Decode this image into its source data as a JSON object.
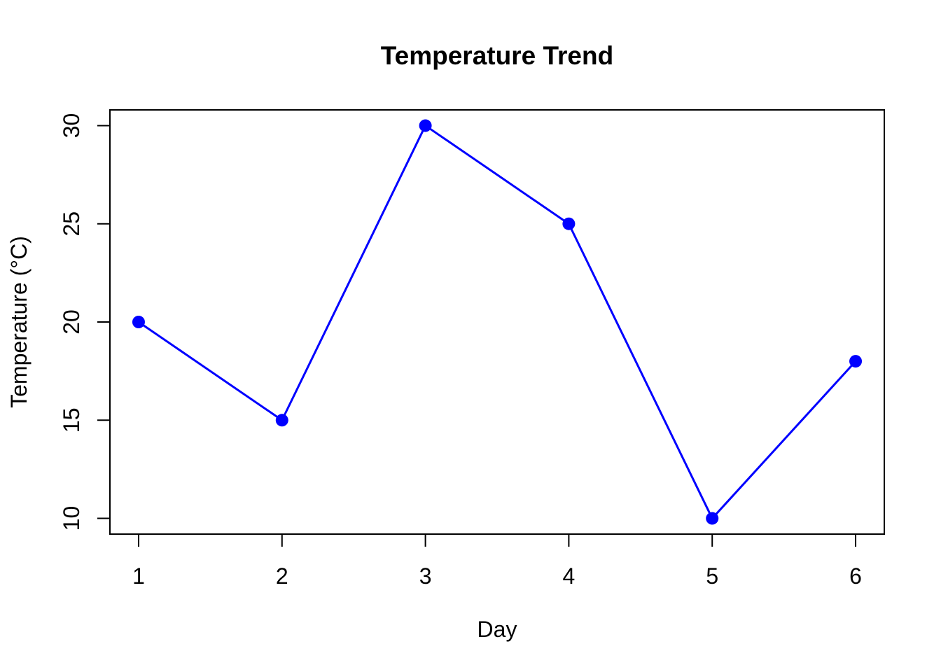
{
  "figure": {
    "background": "#FFFFFF"
  },
  "chart_data": {
    "type": "line",
    "title": "Temperature Trend",
    "xlabel": "Day",
    "ylabel": "Temperature (°C)",
    "x": [
      1,
      2,
      3,
      4,
      5,
      6
    ],
    "series": [
      {
        "name": "temperature",
        "values": [
          20,
          15,
          30,
          25,
          10,
          18
        ]
      }
    ],
    "xticks": [
      1,
      2,
      3,
      4,
      5,
      6
    ],
    "yticks": [
      10,
      15,
      20,
      25,
      30
    ],
    "xlim": [
      0.8,
      6.2
    ],
    "ylim": [
      9.2,
      30.8
    ],
    "grid": false,
    "legend_position": "none",
    "line_color": "#0000FF",
    "point_color": "#0000FF",
    "marker": "filled-circle",
    "axis_color": "#000000",
    "text_color": "#000000"
  }
}
